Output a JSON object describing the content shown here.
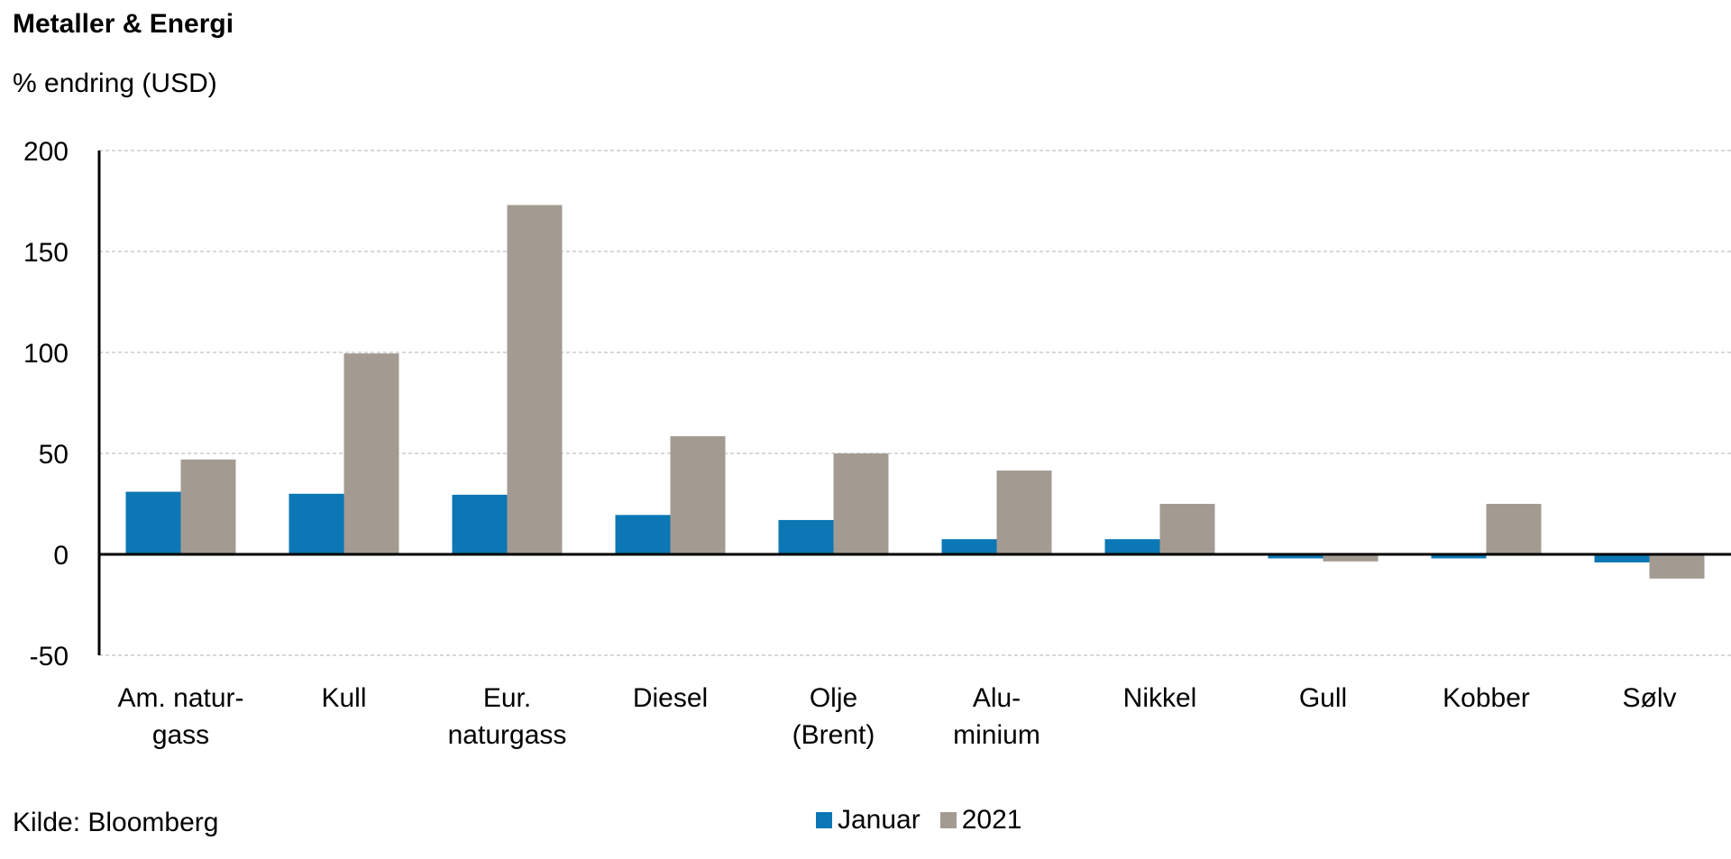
{
  "header": {
    "title": "Metaller & Energi",
    "subtitle": "% endring (USD)"
  },
  "footer": {
    "source": "Kilde: Bloomberg"
  },
  "colors": {
    "januar": "#0b77b4",
    "year2021": "#a39b92",
    "grid": "#b0b0b0"
  },
  "chart_data": {
    "type": "bar",
    "title": "Metaller & Energi",
    "ylabel": "% endring (USD)",
    "ylim": [
      -50,
      200
    ],
    "yticks": [
      "200",
      "150",
      "100",
      "50",
      "0",
      "-50"
    ],
    "ytick_values": [
      200,
      150,
      100,
      50,
      0,
      -50
    ],
    "grid": true,
    "legend_position": "bottom",
    "categories": [
      [
        "Am. natur-",
        "gass"
      ],
      [
        "Kull"
      ],
      [
        "Eur.",
        "naturgass"
      ],
      [
        "Diesel"
      ],
      [
        "Olje",
        "(Brent)"
      ],
      [
        "Alu-",
        "minium"
      ],
      [
        "Nikkel"
      ],
      [
        "Gull"
      ],
      [
        "Kobber"
      ],
      [
        "Sølv"
      ]
    ],
    "series": [
      {
        "name": "Januar",
        "values": [
          31,
          30,
          29.5,
          19.5,
          17,
          7.5,
          7.5,
          -2,
          -2,
          -4
        ]
      },
      {
        "name": "2021",
        "values": [
          47,
          99.5,
          173,
          58.5,
          50,
          41.5,
          25,
          -3.5,
          25,
          -12
        ]
      }
    ]
  }
}
